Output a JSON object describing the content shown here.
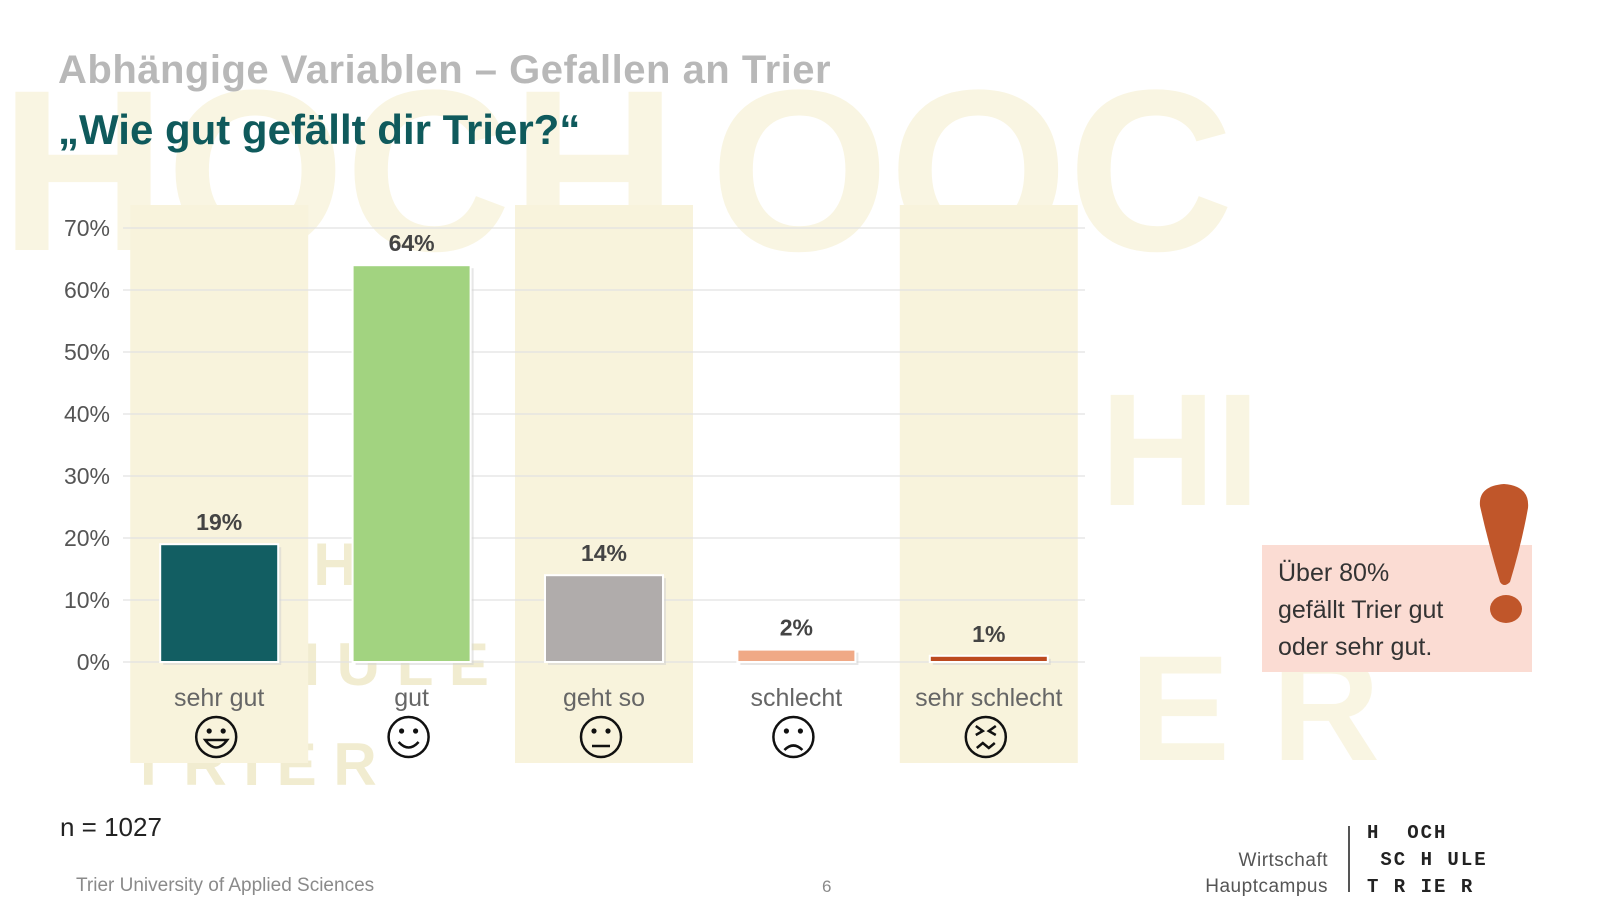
{
  "slide": {
    "supertitle": "Abhängige Variablen – Gefallen an Trier",
    "title": "„Wie gut gefällt dir Trier?“",
    "sample": "n = 1027",
    "callout": [
      "Über 80%",
      "gefällt Trier gut",
      "oder sehr gut."
    ],
    "footer_left": "Trier University of Applied Sciences",
    "page_number": "6",
    "brand_sub1": "Wirtschaft",
    "brand_sub2": "Hauptcampus",
    "logo_lines": [
      "H  OCH",
      " SC H ULE",
      "T R IE R"
    ]
  },
  "chart_data": {
    "type": "bar",
    "categories": [
      "sehr gut",
      "gut",
      "geht so",
      "schlecht",
      "sehr schlecht"
    ],
    "values": [
      19,
      64,
      14,
      2,
      1
    ],
    "data_labels": [
      "19%",
      "64%",
      "14%",
      "2%",
      "1%"
    ],
    "ylim": [
      0,
      70
    ],
    "yticks": [
      "0%",
      "10%",
      "20%",
      "30%",
      "40%",
      "50%",
      "60%",
      "70%"
    ],
    "grid": true,
    "colors": [
      "#125e62",
      "#a2d380",
      "#b0acab",
      "#f0a986",
      "#bc4a20"
    ],
    "emoji_icons": [
      "grin-icon",
      "smile-icon",
      "neutral-face-icon",
      "sad-face-icon",
      "angry-face-icon"
    ],
    "band_color": "#f8f3dc",
    "grid_color": "#e2e2e2"
  }
}
